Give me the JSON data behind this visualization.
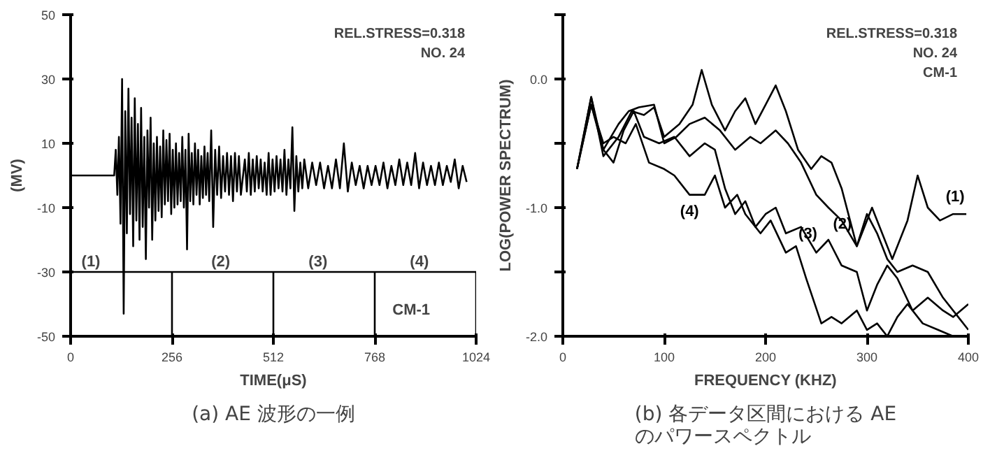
{
  "chart_data": [
    {
      "type": "line",
      "title": "(a) AE 波形の一例",
      "xlabel": "TIME(μS)",
      "ylabel": "(MV)",
      "xlim": [
        0,
        1024
      ],
      "xticks": [
        0,
        256,
        512,
        768,
        1024
      ],
      "ylim": [
        -50,
        50
      ],
      "yticks": [
        -50,
        -30,
        -10,
        10,
        30,
        50
      ],
      "annotations": [
        "REL.STRESS=0.318",
        "NO. 24",
        "(1)",
        "(2)",
        "(3)",
        "(4)",
        "CM-1"
      ],
      "series": [
        {
          "color": "#000000",
          "x": [
            0,
            110,
            114,
            118,
            122,
            126,
            130,
            134,
            138,
            142,
            146,
            150,
            154,
            158,
            162,
            166,
            170,
            174,
            178,
            182,
            186,
            190,
            194,
            198,
            202,
            206,
            210,
            214,
            218,
            222,
            226,
            230,
            234,
            238,
            242,
            246,
            250,
            254,
            258,
            262,
            266,
            270,
            274,
            278,
            282,
            286,
            290,
            294,
            298,
            302,
            306,
            310,
            314,
            318,
            322,
            326,
            330,
            334,
            338,
            342,
            346,
            350,
            355,
            360,
            365,
            370,
            375,
            380,
            385,
            390,
            395,
            400,
            405,
            410,
            415,
            420,
            425,
            430,
            440,
            445,
            450,
            455,
            460,
            465,
            470,
            475,
            480,
            485,
            490,
            495,
            500,
            505,
            510,
            515,
            520,
            525,
            530,
            535,
            540,
            545,
            550,
            555,
            560,
            565,
            570,
            575,
            580,
            585,
            590,
            600,
            610,
            620,
            630,
            640,
            650,
            660,
            670,
            680,
            690,
            700,
            710,
            720,
            730,
            740,
            750,
            760,
            770,
            780,
            790,
            800,
            810,
            820,
            830,
            840,
            850,
            860,
            870,
            880,
            890,
            900,
            910,
            920,
            930,
            940,
            950,
            960,
            970,
            980,
            990,
            1000
          ],
          "values": [
            0,
            0,
            8,
            -6,
            12,
            -15,
            30,
            -43,
            20,
            -18,
            27,
            -12,
            18,
            -22,
            24,
            -14,
            16,
            -20,
            21,
            -16,
            12,
            -26,
            14,
            -10,
            18,
            -20,
            10,
            -14,
            12,
            -11,
            9,
            -13,
            14,
            -9,
            11,
            -8,
            13,
            -12,
            8,
            -10,
            10,
            -9,
            7,
            -8,
            12,
            -10,
            8,
            -23,
            13,
            -8,
            7,
            -9,
            10,
            -6,
            8,
            -9,
            6,
            -7,
            9,
            -6,
            7,
            -8,
            14,
            -16,
            8,
            -6,
            9,
            -7,
            6,
            -5,
            7,
            -6,
            6,
            -8,
            7,
            -5,
            6,
            -6,
            5,
            -5,
            7,
            -6,
            5,
            -5,
            6,
            -4,
            5,
            -5,
            4,
            -6,
            7,
            -6,
            5,
            -5,
            6,
            -4,
            5,
            -5,
            8,
            -6,
            5,
            -4,
            15,
            -11,
            6,
            -5,
            4,
            -4,
            5,
            -4,
            4,
            -3,
            4,
            -4,
            3,
            -4,
            5,
            -4,
            10,
            -5,
            4,
            -3,
            3,
            -4,
            3,
            -3,
            3,
            -3,
            4,
            -4,
            3,
            -3,
            5,
            -3,
            4,
            -3,
            7,
            -4,
            4,
            -3,
            3,
            -3,
            4,
            -3,
            3,
            -2,
            5,
            -4,
            3,
            -2
          ]
        },
        {
          "color": "#000000",
          "x": [
            0,
            1024
          ],
          "values": [
            -30,
            -30
          ]
        },
        {
          "color": "#000000",
          "x": [
            256,
            256
          ],
          "values": [
            -30,
            -50
          ]
        },
        {
          "color": "#000000",
          "x": [
            512,
            512
          ],
          "values": [
            -30,
            -50
          ]
        },
        {
          "color": "#000000",
          "x": [
            768,
            768
          ],
          "values": [
            -30,
            -50
          ]
        },
        {
          "color": "#000000",
          "x": [
            1024,
            1024
          ],
          "values": [
            -30,
            -50
          ]
        }
      ]
    },
    {
      "type": "line",
      "title": "(b) 各データ区間における AE\nのパワースペクトル",
      "xlabel": "FREQUENCY (KHZ)",
      "ylabel": "LOG(POWER SPECTRUM)",
      "xlim": [
        0,
        400
      ],
      "xticks": [
        0,
        100,
        200,
        300,
        400
      ],
      "ylim": [
        -2,
        0.5
      ],
      "yticks": [
        {
          "value": -2,
          "label": "-2.0"
        },
        {
          "value": -1.5,
          "label": null
        },
        {
          "value": -1,
          "label": "-1.0"
        },
        {
          "value": -0.5,
          "label": null
        },
        {
          "value": 0,
          "label": "0.0"
        },
        {
          "value": 0.5,
          "label": null
        }
      ],
      "annotations": [
        "REL.STRESS=0.318",
        "NO. 24",
        "CM-1"
      ],
      "series": [
        {
          "name": "(1)",
          "color": "#000000",
          "x": [
            14,
            28,
            40,
            55,
            68,
            80,
            90,
            100,
            115,
            128,
            137,
            147,
            160,
            170,
            180,
            190,
            200,
            210,
            220,
            232,
            245,
            255,
            265,
            275,
            290,
            305,
            315,
            325,
            340,
            350,
            360,
            372,
            385,
            398
          ],
          "values": [
            -0.7,
            -0.14,
            -0.6,
            -0.45,
            -0.25,
            -0.28,
            -0.22,
            -0.45,
            -0.35,
            -0.2,
            0.07,
            -0.2,
            -0.4,
            -0.25,
            -0.15,
            -0.35,
            -0.2,
            -0.05,
            -0.25,
            -0.55,
            -0.7,
            -0.6,
            -0.65,
            -0.85,
            -1.3,
            -1.0,
            -1.2,
            -1.4,
            -1.1,
            -0.75,
            -1.0,
            -1.1,
            -1.05,
            -1.05
          ]
        },
        {
          "name": "(2)",
          "color": "#000000",
          "x": [
            14,
            28,
            40,
            55,
            65,
            75,
            90,
            100,
            112,
            125,
            140,
            155,
            170,
            185,
            195,
            210,
            222,
            235,
            250,
            262,
            275,
            290,
            300,
            310,
            320,
            330,
            345,
            360,
            375,
            390,
            400
          ],
          "values": [
            -0.7,
            -0.14,
            -0.55,
            -0.35,
            -0.25,
            -0.22,
            -0.2,
            -0.5,
            -0.45,
            -0.35,
            -0.3,
            -0.4,
            -0.55,
            -0.45,
            -0.5,
            -0.4,
            -0.5,
            -0.65,
            -0.9,
            -1.0,
            -1.1,
            -1.3,
            -1.05,
            -1.2,
            -1.4,
            -1.5,
            -1.45,
            -1.5,
            -1.7,
            -1.85,
            -1.95
          ]
        },
        {
          "name": "(3)",
          "color": "#000000",
          "x": [
            14,
            28,
            40,
            50,
            60,
            70,
            80,
            95,
            110,
            125,
            140,
            150,
            160,
            170,
            180,
            190,
            200,
            210,
            220,
            235,
            250,
            262,
            275,
            290,
            300,
            310,
            320,
            330,
            345,
            360,
            375,
            385,
            400
          ],
          "values": [
            -0.7,
            -0.2,
            -0.55,
            -0.65,
            -0.4,
            -0.25,
            -0.45,
            -0.5,
            -0.45,
            -0.6,
            -0.5,
            -0.55,
            -0.85,
            -1.05,
            -0.95,
            -1.15,
            -1.05,
            -1.0,
            -1.2,
            -1.15,
            -1.35,
            -1.25,
            -1.45,
            -1.5,
            -1.8,
            -1.6,
            -1.45,
            -1.55,
            -1.8,
            -1.7,
            -1.8,
            -1.85,
            -1.75
          ]
        },
        {
          "name": "(4)",
          "color": "#000000",
          "x": [
            14,
            28,
            40,
            50,
            62,
            72,
            85,
            100,
            110,
            125,
            140,
            150,
            160,
            172,
            180,
            195,
            205,
            220,
            230,
            240,
            255,
            265,
            275,
            290,
            300,
            310,
            320,
            330,
            340,
            355,
            370,
            385
          ],
          "values": [
            -0.7,
            -0.2,
            -0.5,
            -0.45,
            -0.5,
            -0.35,
            -0.65,
            -0.7,
            -0.75,
            -0.9,
            -0.9,
            -0.75,
            -1.0,
            -0.9,
            -1.05,
            -1.2,
            -1.1,
            -1.35,
            -1.3,
            -1.55,
            -1.9,
            -1.85,
            -1.9,
            -1.8,
            -1.95,
            -1.9,
            -2.0,
            -1.85,
            -1.75,
            -1.9,
            -1.95,
            -2.0
          ]
        }
      ]
    }
  ]
}
